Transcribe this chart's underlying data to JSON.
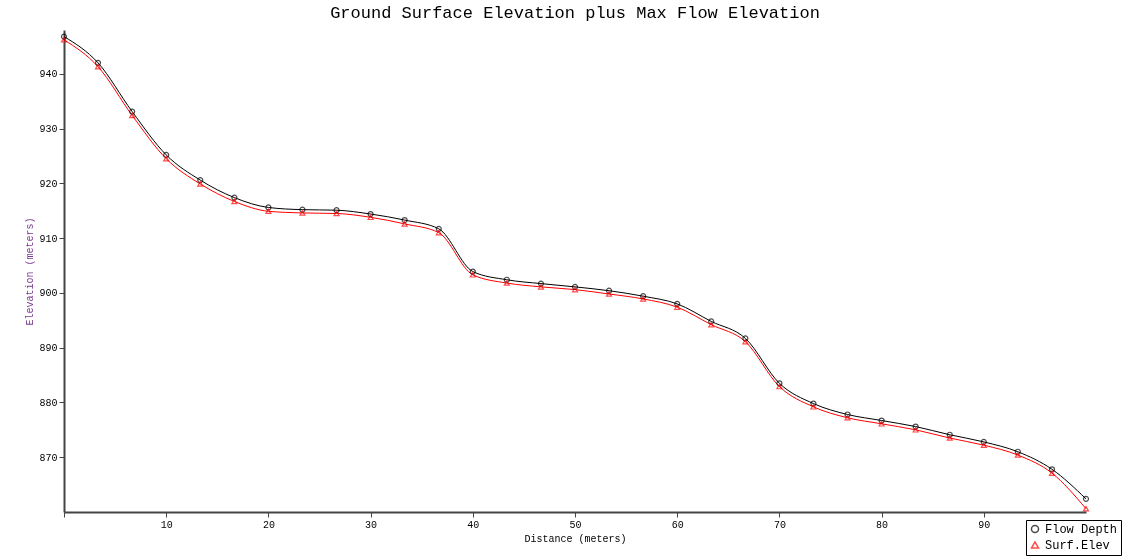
{
  "chart_data": {
    "type": "line",
    "title": "Ground Surface Elevation plus Max Flow Elevation",
    "xlabel": "Distance (meters)",
    "ylabel": "Elevation (meters)",
    "x": [
      0,
      3.33,
      6.67,
      10,
      13.33,
      16.67,
      20,
      23.33,
      26.67,
      30,
      33.33,
      36.67,
      40,
      43.33,
      46.67,
      50,
      53.33,
      56.67,
      60,
      63.33,
      66.67,
      70,
      73.33,
      76.67,
      80,
      83.33,
      86.67,
      90,
      93.33,
      96.67,
      100
    ],
    "series": [
      {
        "name": "Flow Depth",
        "color": "#000000",
        "marker": "circle",
        "values": [
          946.8,
          942.0,
          933.1,
          925.2,
          920.6,
          917.4,
          915.6,
          915.2,
          915.1,
          914.4,
          913.3,
          911.7,
          903.9,
          902.4,
          901.7,
          901.1,
          900.4,
          899.4,
          898.0,
          894.8,
          891.7,
          883.5,
          879.8,
          877.8,
          876.7,
          875.6,
          874.1,
          872.8,
          871.0,
          867.8,
          862.4
        ]
      },
      {
        "name": "Surf.Elev",
        "color": "#ff0000",
        "marker": "triangle",
        "values": [
          946.2,
          941.3,
          932.4,
          924.5,
          919.9,
          916.7,
          914.9,
          914.6,
          914.5,
          913.8,
          912.6,
          911.0,
          903.3,
          901.8,
          901.1,
          900.6,
          899.8,
          898.9,
          897.4,
          894.2,
          891.1,
          882.9,
          879.2,
          877.2,
          876.1,
          875.0,
          873.5,
          872.2,
          870.4,
          867.1,
          860.6
        ]
      }
    ],
    "xlim": [
      0,
      100
    ],
    "xticks": [
      {
        "value": 0,
        "label": null
      },
      10,
      20,
      30,
      40,
      50,
      60,
      70,
      80,
      90
    ],
    "ylim": [
      860,
      948
    ],
    "yticks": [
      870,
      880,
      890,
      900,
      910,
      920,
      930,
      940
    ],
    "grid": false,
    "legend": "bottom right",
    "line_style": "solid"
  }
}
